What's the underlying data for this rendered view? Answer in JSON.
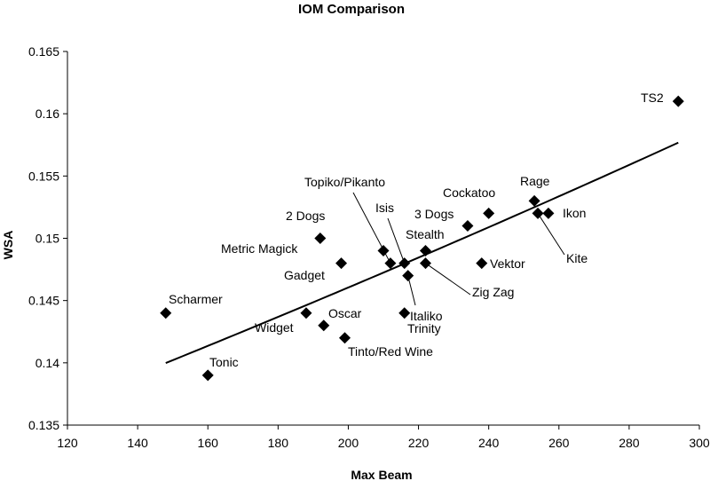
{
  "chart_data": {
    "type": "scatter",
    "title": "IOM Comparison",
    "xlabel": "Max Beam",
    "ylabel": "WSA",
    "xlim": [
      120,
      300
    ],
    "ylim": [
      0.135,
      0.165
    ],
    "x_ticks": [
      "120",
      "140",
      "160",
      "180",
      "200",
      "220",
      "240",
      "260",
      "280",
      "300"
    ],
    "y_ticks": [
      "0.135",
      "0.14",
      "0.145",
      "0.15",
      "0.155",
      "0.16",
      "0.165"
    ],
    "grid": false,
    "legend": "none",
    "marker": "diamond",
    "marker_color": "#000000",
    "trendline": {
      "type": "exponential",
      "color": "#000000"
    },
    "points": [
      {
        "label": "Scharmer",
        "x": 148,
        "y": 0.144
      },
      {
        "label": "Tonic",
        "x": 160,
        "y": 0.139
      },
      {
        "label": "Widget",
        "x": 188,
        "y": 0.144
      },
      {
        "label": "Oscar",
        "x": 193,
        "y": 0.143
      },
      {
        "label": "2 Dogs",
        "x": 192,
        "y": 0.15
      },
      {
        "label": "Metric Magick",
        "x": 198,
        "y": 0.148
      },
      {
        "label": "Gadget",
        "x": 199,
        "y": 0.142
      },
      {
        "label": "Tinto/Red Wine",
        "x": 210,
        "y": 0.149
      },
      {
        "label": "Topiko/Pikanto",
        "x": 212,
        "y": 0.148
      },
      {
        "label": "Isis",
        "x": 216,
        "y": 0.148
      },
      {
        "label": "Italiko",
        "x": 217,
        "y": 0.147
      },
      {
        "label": "Trinity",
        "x": 216,
        "y": 0.144
      },
      {
        "label": "Stealth",
        "x": 222,
        "y": 0.149
      },
      {
        "label": "Zig Zag",
        "x": 222,
        "y": 0.148
      },
      {
        "label": "3 Dogs",
        "x": 234,
        "y": 0.151
      },
      {
        "label": "Cockatoo",
        "x": 240,
        "y": 0.152
      },
      {
        "label": "Vektor",
        "x": 238,
        "y": 0.148
      },
      {
        "label": "Rage",
        "x": 253,
        "y": 0.153
      },
      {
        "label": "Kite",
        "x": 254,
        "y": 0.152
      },
      {
        "label": "Ikon",
        "x": 257,
        "y": 0.152
      },
      {
        "label": "TS2",
        "x": 294,
        "y": 0.161
      }
    ]
  }
}
